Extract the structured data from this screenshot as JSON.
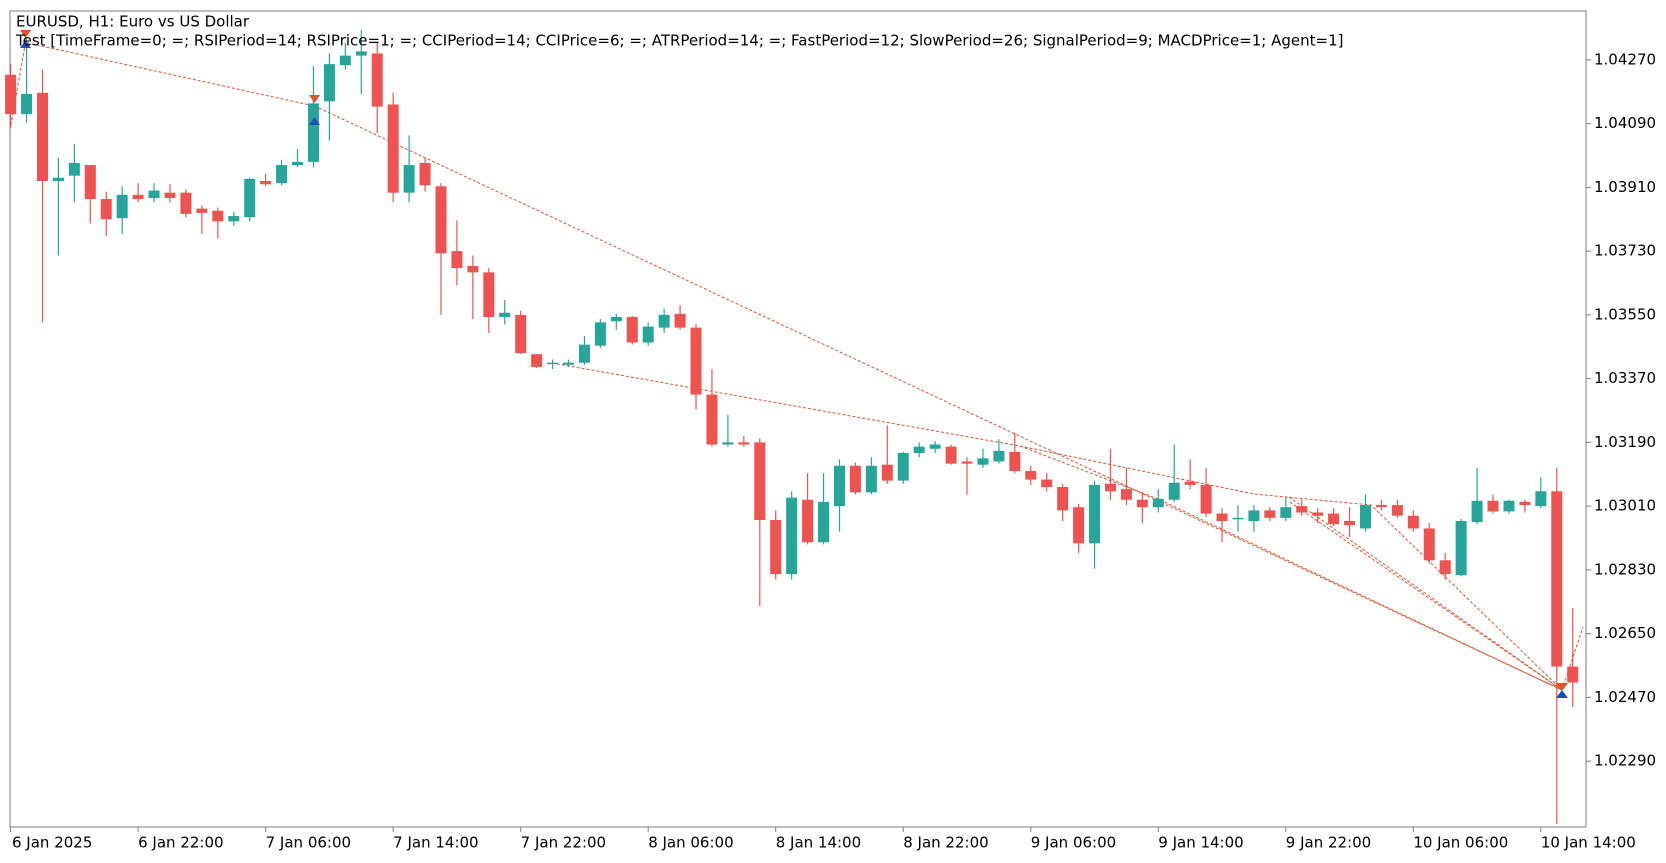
{
  "chart_data": {
    "type": "candlestick",
    "title": "EURUSD, H1:  Euro vs US Dollar",
    "subtitle": "Test [TimeFrame=0; =; RSIPeriod=14; RSIPrice=1; =; CCIPeriod=14; CCIPrice=6; =; ATRPeriod=14; =; FastPeriod=12; SlowPeriod=26; SignalPeriod=9; MACDPrice=1; Agent=1]",
    "up_color": "#26a69a",
    "down_color": "#ef5350",
    "categories": [
      "6 Jan 2025",
      null,
      null,
      null,
      null,
      null,
      null,
      null,
      "6 Jan 22:00",
      null,
      null,
      null,
      null,
      null,
      null,
      null,
      "7 Jan 06:00",
      null,
      null,
      null,
      null,
      null,
      null,
      null,
      "7 Jan 14:00",
      null,
      null,
      null,
      null,
      null,
      null,
      null,
      "7 Jan 22:00",
      null,
      null,
      null,
      null,
      null,
      null,
      null,
      "8 Jan 06:00",
      null,
      null,
      null,
      null,
      null,
      null,
      null,
      "8 Jan 14:00",
      null,
      null,
      null,
      null,
      null,
      null,
      null,
      "8 Jan 22:00",
      null,
      null,
      null,
      null,
      null,
      null,
      null,
      "9 Jan 06:00",
      null,
      null,
      null,
      null,
      null,
      null,
      null,
      "9 Jan 14:00",
      null,
      null,
      null,
      null,
      null,
      null,
      null,
      "9 Jan 22:00",
      null,
      null,
      null,
      null,
      null,
      null,
      null,
      "10 Jan 06:00",
      null,
      null,
      null,
      null,
      null,
      null,
      null,
      "10 Jan 14:00",
      null,
      null
    ],
    "open": [
      1.04228,
      1.04117,
      1.04177,
      1.03928,
      1.03943,
      1.03973,
      1.03877,
      1.03823,
      1.03889,
      1.0388,
      1.03895,
      1.03895,
      1.0385,
      1.03844,
      1.03814,
      1.03826,
      1.03928,
      1.03922,
      1.03973,
      1.03982,
      1.04153,
      1.04255,
      1.04282,
      1.04288,
      1.04144,
      1.03895,
      1.03979,
      1.03913,
      1.0373,
      1.03688,
      1.0367,
      1.03544,
      1.0355,
      1.03439,
      1.03412,
      1.03409,
      1.03415,
      1.03463,
      1.03532,
      1.03544,
      1.03472,
      1.03514,
      1.03553,
      1.03514,
      1.03325,
      1.03184,
      1.0319,
      1.0319,
      1.02971,
      1.02818,
      1.03028,
      1.02908,
      1.0301,
      1.03124,
      1.03049,
      1.03127,
      1.03082,
      1.0316,
      1.03172,
      1.03178,
      1.03136,
      1.03127,
      1.03136,
      1.03163,
      1.03109,
      1.03085,
      1.03064,
      1.03007,
      1.02905,
      1.03073,
      1.03058,
      1.03028,
      1.03007,
      1.03028,
      1.03079,
      1.0307,
      1.02989,
      1.02974,
      1.02968,
      1.02998,
      1.02977,
      1.0301,
      1.02992,
      1.02989,
      1.02968,
      1.02947,
      1.03013,
      1.03013,
      1.02983,
      1.02947,
      1.02857,
      1.02815,
      1.02965,
      1.03025,
      1.02995,
      1.03022,
      1.0301,
      1.03052,
      1.02557
    ],
    "high": [
      1.04258,
      1.04333,
      1.04243,
      1.03994,
      1.04033,
      1.03973,
      1.03898,
      1.03913,
      1.03922,
      1.03922,
      1.03919,
      1.03904,
      1.03859,
      1.03853,
      1.03841,
      1.03937,
      1.03949,
      1.03988,
      1.04018,
      1.04252,
      1.04288,
      1.04318,
      1.04354,
      1.04318,
      1.04177,
      1.04057,
      1.03994,
      1.03922,
      1.03817,
      1.03718,
      1.03682,
      1.03592,
      1.03562,
      1.03439,
      1.03424,
      1.03424,
      1.0349,
      1.03538,
      1.03553,
      1.03547,
      1.03529,
      1.03568,
      1.03577,
      1.03523,
      1.03397,
      1.03268,
      1.03208,
      1.03202,
      1.02998,
      1.03052,
      1.03103,
      1.03103,
      1.03142,
      1.03133,
      1.03148,
      1.03238,
      1.03163,
      1.0319,
      1.03193,
      1.03184,
      1.03148,
      1.03172,
      1.03199,
      1.03217,
      1.03124,
      1.03103,
      1.03073,
      1.03016,
      1.03082,
      1.03172,
      1.03118,
      1.03049,
      1.03058,
      1.03184,
      1.03142,
      1.03118,
      1.03004,
      1.03013,
      1.03013,
      1.03007,
      1.03037,
      1.03028,
      1.03004,
      1.03004,
      1.03007,
      1.03043,
      1.03028,
      1.03028,
      1.02998,
      1.02962,
      1.02878,
      1.02974,
      1.03118,
      1.03043,
      1.03028,
      1.03028,
      1.03091,
      1.03118,
      1.02722
    ],
    "low": [
      1.04078,
      1.04093,
      1.03529,
      1.03718,
      1.03868,
      1.03808,
      1.03772,
      1.03778,
      1.03868,
      1.03868,
      1.03868,
      1.03826,
      1.03778,
      1.03766,
      1.03802,
      1.03814,
      1.03913,
      1.03916,
      1.03967,
      1.03967,
      1.04042,
      1.04243,
      1.04174,
      1.04063,
      1.03868,
      1.03868,
      1.03898,
      1.0355,
      1.03634,
      1.03538,
      1.03499,
      1.03523,
      1.03439,
      1.034,
      1.03397,
      1.03403,
      1.03409,
      1.03457,
      1.03508,
      1.03466,
      1.03463,
      1.03499,
      1.03508,
      1.03283,
      1.03178,
      1.03178,
      1.03178,
      1.02728,
      1.02803,
      1.02803,
      1.02902,
      1.02902,
      1.02938,
      1.03043,
      1.03043,
      1.03073,
      1.03073,
      1.03148,
      1.0316,
      1.03127,
      1.03043,
      1.03118,
      1.0313,
      1.03103,
      1.0307,
      1.03052,
      1.02968,
      1.02878,
      1.02833,
      1.03028,
      1.03013,
      1.02962,
      1.02992,
      1.03022,
      1.03058,
      1.0298,
      1.02908,
      1.02938,
      1.02938,
      1.02968,
      1.02968,
      1.02983,
      1.02962,
      1.02953,
      1.02923,
      1.02938,
      1.02998,
      1.02977,
      1.02938,
      1.02848,
      1.02803,
      1.02812,
      1.02959,
      1.02989,
      1.02989,
      1.02992,
      1.03004,
      1.02113,
      1.02443
    ],
    "close": [
      1.04117,
      1.04174,
      1.03928,
      1.03937,
      1.03979,
      1.03877,
      1.0382,
      1.03889,
      1.03877,
      1.03901,
      1.0388,
      1.03835,
      1.03838,
      1.03814,
      1.03829,
      1.03934,
      1.03919,
      1.03973,
      1.03982,
      1.04147,
      1.04258,
      1.04282,
      1.04294,
      1.04138,
      1.03895,
      1.03973,
      1.03916,
      1.03724,
      1.03682,
      1.0367,
      1.03544,
      1.03556,
      1.03442,
      1.03403,
      1.03415,
      1.03415,
      1.03466,
      1.03529,
      1.03544,
      1.03472,
      1.03517,
      1.0355,
      1.03514,
      1.03325,
      1.03184,
      1.0319,
      1.03184,
      1.02971,
      1.02818,
      1.03034,
      1.02908,
      1.03022,
      1.03124,
      1.03049,
      1.03124,
      1.03082,
      1.0316,
      1.03178,
      1.03184,
      1.0313,
      1.0313,
      1.03145,
      1.03166,
      1.03109,
      1.03085,
      1.03064,
      1.02998,
      1.02905,
      1.0307,
      1.03052,
      1.03028,
      1.03007,
      1.03031,
      1.03076,
      1.0307,
      1.02989,
      1.02968,
      1.02977,
      1.02998,
      1.02977,
      1.03007,
      1.02992,
      1.02983,
      1.02959,
      1.02956,
      1.03013,
      1.03007,
      1.02983,
      1.02947,
      1.02857,
      1.02818,
      1.02968,
      1.03025,
      1.02995,
      1.03025,
      1.03013,
      1.03052,
      1.02557,
      1.02512
    ],
    "ylim": [
      1.02104,
      1.04408
    ],
    "yticks": [
      {
        "value": 1.0427,
        "label": "1.04270"
      },
      {
        "value": 1.0409,
        "label": "1.04090"
      },
      {
        "value": 1.0391,
        "label": "1.03910"
      },
      {
        "value": 1.0373,
        "label": "1.03730"
      },
      {
        "value": 1.0355,
        "label": "1.03550"
      },
      {
        "value": 1.0337,
        "label": "1.03370"
      },
      {
        "value": 1.0319,
        "label": "1.03190"
      },
      {
        "value": 1.0301,
        "label": "1.03010"
      },
      {
        "value": 1.0283,
        "label": "1.02830"
      },
      {
        "value": 1.0265,
        "label": "1.02650"
      },
      {
        "value": 1.0247,
        "label": "1.02470"
      },
      {
        "value": 1.0229,
        "label": "1.02290"
      }
    ],
    "grid": false
  }
}
